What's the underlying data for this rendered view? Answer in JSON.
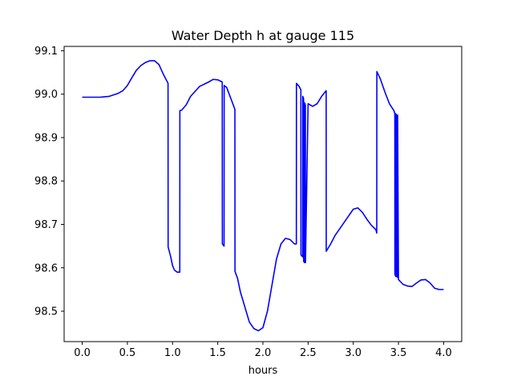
{
  "chart_data": {
    "type": "line",
    "title": "Water Depth h at gauge 115",
    "xlabel": "hours",
    "ylabel": "",
    "xlim": [
      -0.2,
      4.2
    ],
    "ylim": [
      98.43,
      99.11
    ],
    "xticks": [
      0.0,
      0.5,
      1.0,
      1.5,
      2.0,
      2.5,
      3.0,
      3.5,
      4.0
    ],
    "xtick_labels": [
      "0.0",
      "0.5",
      "1.0",
      "1.5",
      "2.0",
      "2.5",
      "3.0",
      "3.5",
      "4.0"
    ],
    "yticks": [
      98.5,
      98.6,
      98.7,
      98.8,
      98.9,
      99.0,
      99.1
    ],
    "ytick_labels": [
      "98.5",
      "98.6",
      "98.7",
      "98.8",
      "98.9",
      "99.0",
      "99.1"
    ],
    "grid": false,
    "series": [
      {
        "color": "#0000ff",
        "x": [
          0.0,
          0.1,
          0.2,
          0.3,
          0.4,
          0.45,
          0.5,
          0.55,
          0.6,
          0.65,
          0.7,
          0.75,
          0.8,
          0.85,
          0.9,
          0.95,
          0.951,
          0.98,
          1.0,
          1.02,
          1.05,
          1.08,
          1.081,
          1.1,
          1.15,
          1.2,
          1.3,
          1.4,
          1.45,
          1.5,
          1.55,
          1.551,
          1.57,
          1.571,
          1.6,
          1.69,
          1.691,
          1.72,
          1.75,
          1.8,
          1.85,
          1.9,
          1.95,
          2.0,
          2.05,
          2.1,
          2.15,
          2.2,
          2.25,
          2.3,
          2.35,
          2.37,
          2.371,
          2.4,
          2.42,
          2.421,
          2.44,
          2.441,
          2.45,
          2.451,
          2.46,
          2.461,
          2.47,
          2.471,
          2.5,
          2.55,
          2.6,
          2.65,
          2.7,
          2.701,
          2.75,
          2.8,
          2.9,
          3.0,
          3.05,
          3.1,
          3.15,
          3.2,
          3.25,
          3.26,
          3.261,
          3.3,
          3.35,
          3.4,
          3.45,
          3.46,
          3.461,
          3.47,
          3.471,
          3.48,
          3.481,
          3.49,
          3.491,
          3.5,
          3.55,
          3.6,
          3.65,
          3.7,
          3.75,
          3.8,
          3.85,
          3.9,
          3.95,
          4.0
        ],
        "y": [
          98.993,
          98.993,
          98.993,
          98.995,
          99.002,
          99.008,
          99.02,
          99.038,
          99.055,
          99.066,
          99.073,
          99.077,
          99.077,
          99.068,
          99.045,
          99.025,
          98.648,
          98.625,
          98.605,
          98.595,
          98.59,
          98.59,
          98.962,
          98.963,
          98.975,
          98.995,
          99.018,
          99.028,
          99.034,
          99.033,
          99.028,
          98.655,
          98.65,
          99.02,
          99.015,
          98.965,
          98.592,
          98.575,
          98.545,
          98.51,
          98.475,
          98.46,
          98.455,
          98.462,
          98.5,
          98.56,
          98.62,
          98.655,
          98.668,
          98.665,
          98.655,
          98.655,
          99.025,
          99.018,
          99.01,
          98.63,
          98.625,
          98.995,
          98.99,
          98.615,
          98.612,
          98.98,
          98.975,
          98.612,
          98.978,
          98.972,
          98.978,
          98.995,
          99.008,
          98.638,
          98.655,
          98.675,
          98.705,
          98.735,
          98.738,
          98.728,
          98.712,
          98.698,
          98.688,
          98.68,
          99.052,
          99.035,
          99.005,
          98.978,
          98.962,
          98.955,
          98.585,
          98.58,
          98.955,
          98.95,
          98.58,
          98.578,
          98.952,
          98.573,
          98.562,
          98.558,
          98.557,
          98.565,
          98.572,
          98.573,
          98.565,
          98.553,
          98.55,
          98.55
        ]
      }
    ]
  }
}
